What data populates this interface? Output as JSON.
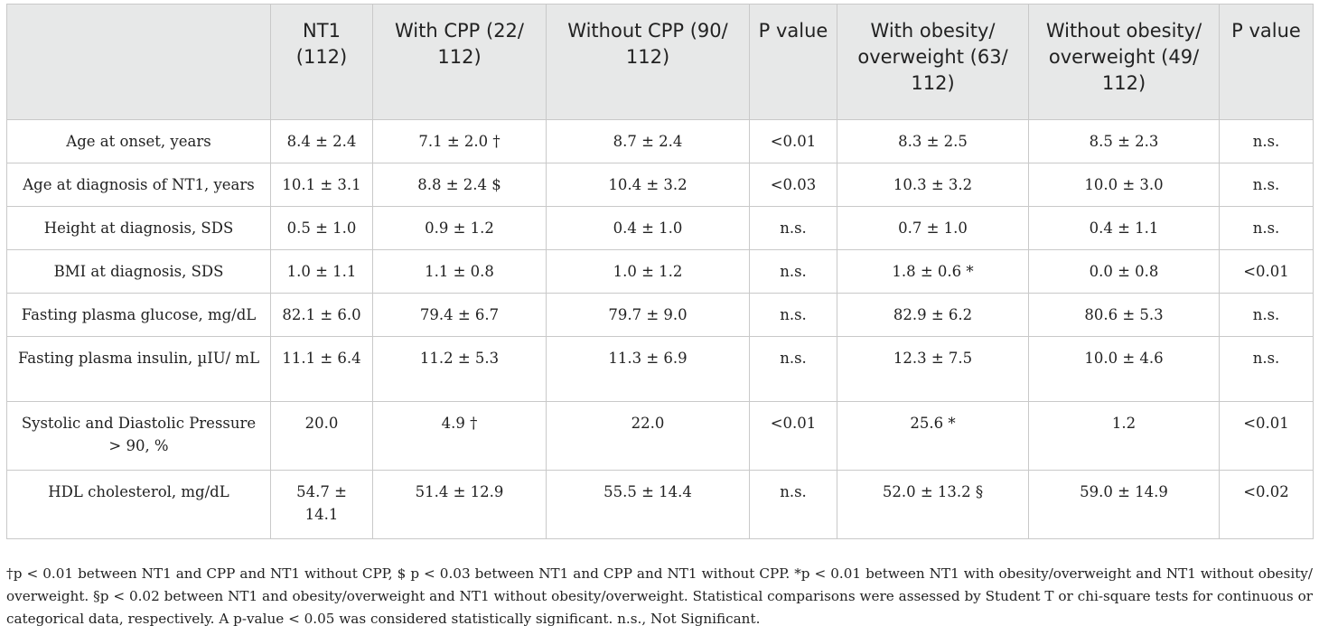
{
  "table": {
    "columns": [
      "",
      "NT1 (112)",
      "With CPP (22/ 112)",
      "Without CPP (90/ 112)",
      "P value",
      "With obesity/ overweight (63/ 112)",
      "Without obesity/ overweight (49/ 112)",
      "P value"
    ],
    "rows": [
      {
        "label": "Age at onset, years",
        "cells": [
          "8.4 ± 2.4",
          "7.1 ± 2.0 †",
          "8.7 ± 2.4",
          "<0.01",
          "8.3 ± 2.5",
          "8.5 ± 2.3",
          "n.s."
        ]
      },
      {
        "label": "Age at diagnosis of NT1, years",
        "cells": [
          "10.1 ± 3.1",
          "8.8 ± 2.4 $",
          "10.4 ± 3.2",
          "<0.03",
          "10.3 ± 3.2",
          "10.0 ± 3.0",
          "n.s."
        ]
      },
      {
        "label": "Height at diagnosis, SDS",
        "cells": [
          "0.5 ± 1.0",
          "0.9 ± 1.2",
          "0.4 ± 1.0",
          "n.s.",
          "0.7 ± 1.0",
          "0.4 ± 1.1",
          "n.s."
        ]
      },
      {
        "label": "BMI at diagnosis, SDS",
        "cells": [
          "1.0 ± 1.1",
          "1.1 ± 0.8",
          "1.0 ± 1.2",
          "n.s.",
          "1.8 ± 0.6 *",
          "0.0 ± 0.8",
          "<0.01"
        ]
      },
      {
        "label": "Fasting plasma glucose, mg/dL",
        "cells": [
          "82.1 ± 6.0",
          "79.4 ± 6.7",
          "79.7 ± 9.0",
          "n.s.",
          "82.9 ± 6.2",
          "80.6 ± 5.3",
          "n.s."
        ]
      },
      {
        "label": "Fasting plasma insulin, µIU/ mL",
        "cells": [
          "11.1 ± 6.4",
          "11.2 ± 5.3",
          "11.3 ± 6.9",
          "n.s.",
          "12.3 ± 7.5",
          "10.0 ± 4.6",
          "n.s."
        ]
      },
      {
        "label": "Systolic and Diastolic Pressure > 90, %",
        "cells": [
          "20.0",
          "4.9 †",
          "22.0",
          "<0.01",
          "25.6 *",
          "1.2",
          "<0.01"
        ]
      },
      {
        "label": "HDL cholesterol, mg/dL",
        "cells": [
          "54.7 ± 14.1",
          "51.4 ± 12.9",
          "55.5 ± 14.4",
          "n.s.",
          "52.0 ± 13.2 §",
          "59.0 ± 14.9",
          "<0.02"
        ]
      }
    ]
  },
  "footnote": "†p < 0.01 between NT1 and CPP and NT1 without CPP, $ p < 0.03 between NT1 and CPP and NT1 without CPP. *p < 0.01 between NT1 with obesity/overweight and NT1 without obesity/ overweight. §p < 0.02 between NT1 and obesity/overweight and NT1 without obesity/overweight. Statistical comparisons were assessed by Student T or chi-square tests for continuous or categorical data, respectively. A p-value < 0.05 was considered statistically significant. n.s., Not Significant."
}
